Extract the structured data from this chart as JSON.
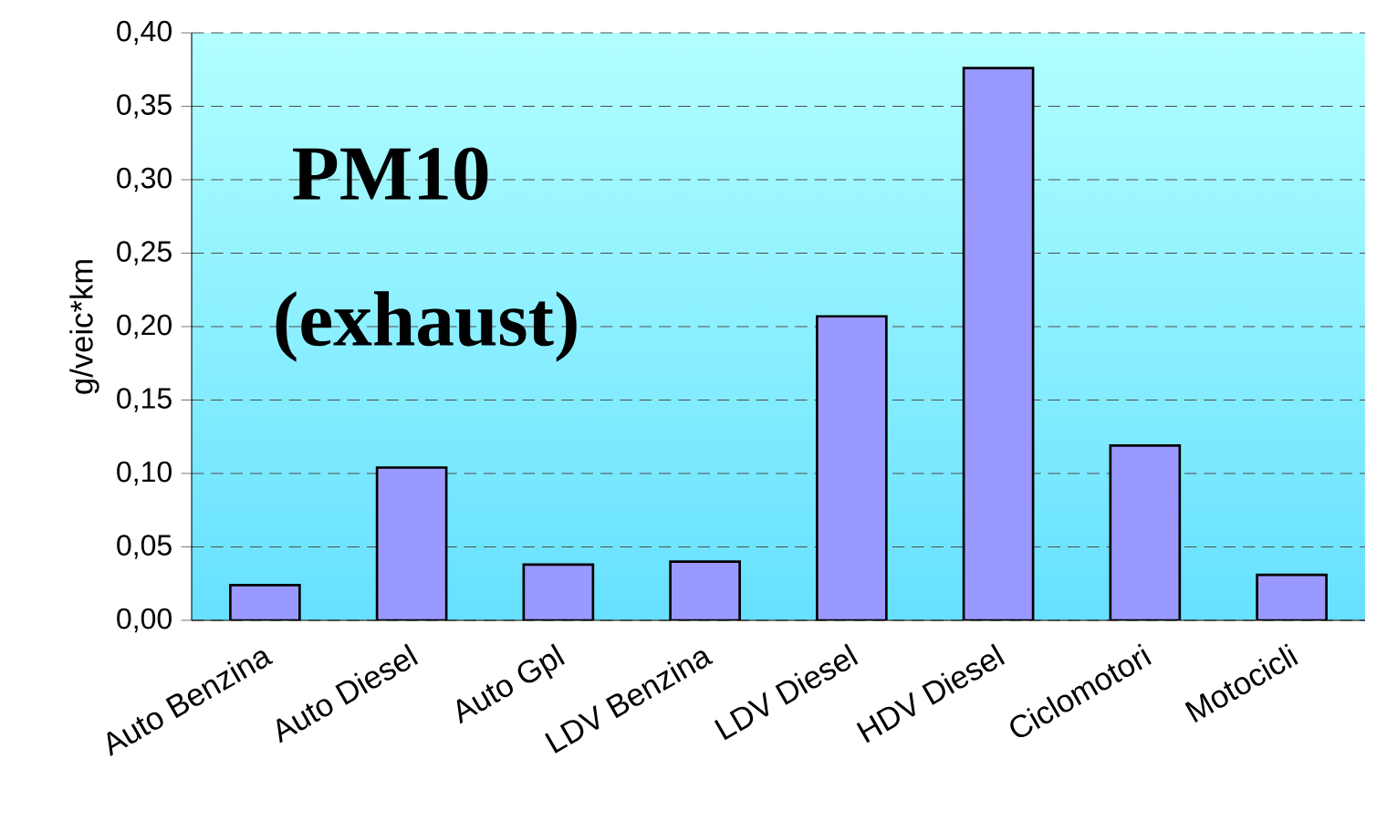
{
  "chart_data": {
    "type": "bar",
    "categories": [
      "Auto Benzina",
      "Auto Diesel",
      "Auto Gpl",
      "LDV Benzina",
      "LDV Diesel",
      "HDV Diesel",
      "Ciclomotori",
      "Motocicli"
    ],
    "values": [
      0.024,
      0.104,
      0.038,
      0.04,
      0.207,
      0.376,
      0.119,
      0.031
    ],
    "color": "#9999ff",
    "ylabel": "g/veic*km",
    "annotations": [
      "PM10",
      "(exhaust)"
    ],
    "ylim": [
      0,
      0.4
    ],
    "yticks": [
      {
        "value": 0,
        "label": "0,00"
      },
      {
        "value": 0.05,
        "label": "0,05"
      },
      {
        "value": 0.1,
        "label": "0,10"
      },
      {
        "value": 0.15,
        "label": "0,15"
      },
      {
        "value": 0.2,
        "label": "0,20"
      },
      {
        "value": 0.25,
        "label": "0,25"
      },
      {
        "value": 0.3,
        "label": "0,30"
      },
      {
        "value": 0.35,
        "label": "0,35"
      },
      {
        "value": 0.4,
        "label": "0,40"
      }
    ],
    "grid": "y",
    "line_style": "dashed"
  }
}
